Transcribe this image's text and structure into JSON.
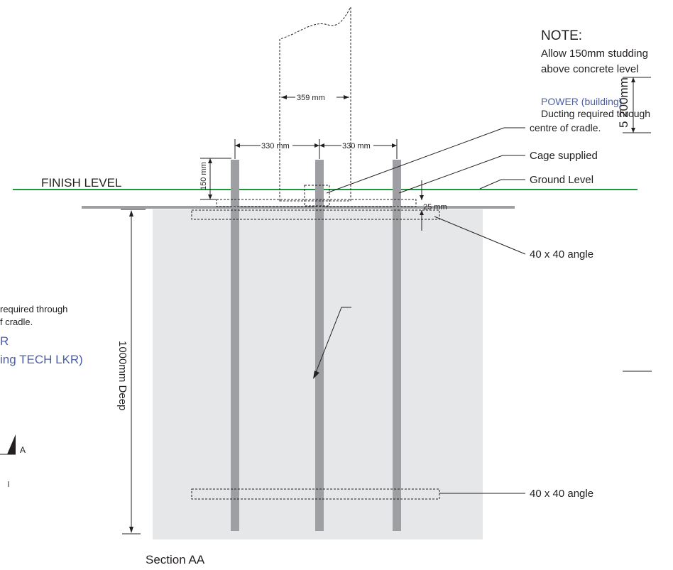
{
  "labels": {
    "finish_level": "FINISH LEVEL",
    "ground_level": "Ground Level",
    "cage_supplied": "Cage supplied",
    "angle_top": "40 x 40 angle",
    "angle_bottom": "40 x 40 angle",
    "depth": "1000mm Deep",
    "section": "Section AA",
    "section_marker": "A"
  },
  "note": {
    "heading": "NOTE:",
    "line1": "Allow 150mm studding",
    "line2": "above concrete level",
    "power": "POWER (building)",
    "ducting1": "Ducting required through",
    "ducting2": "centre of cradle.",
    "dim_vertical": "5 200mm"
  },
  "left_partial": {
    "line1": "required through",
    "line2": "f cradle.",
    "line3": "R",
    "line4": "ing TECH LKR)"
  },
  "dimensions": {
    "post_width": "359 mm",
    "spacing_left": "330 mm",
    "spacing_right": "330 mm",
    "stud_height": "150 mm",
    "angle_depth": "25 mm"
  },
  "colors": {
    "finish_line": "#1a9a3c",
    "concrete": "#e6e7e8",
    "steel": "#9d9fa2",
    "blue_text": "#4d5fa6"
  }
}
